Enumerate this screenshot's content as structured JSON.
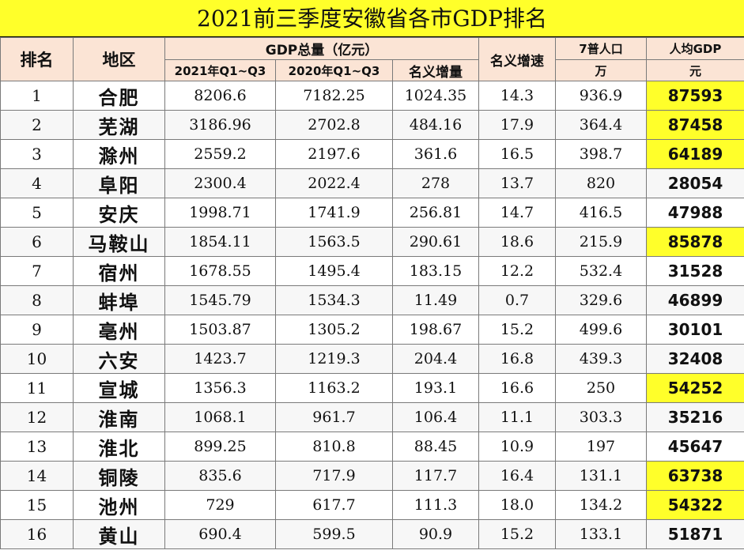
{
  "title": "2021前三季度安徽省各市GDP排名",
  "headers": {
    "rank": "排名",
    "region": "地区",
    "gdp_total": "GDP总量（亿元）",
    "gdp_2021": "2021年Q1~Q3",
    "gdp_2020": "2020年Q1~Q3",
    "nominal_increase": "名义增量",
    "nominal_growth": "名义增速",
    "census_pop": "7普人口",
    "census_pop_unit": "万",
    "per_capita": "人均GDP",
    "per_capita_unit": "元"
  },
  "colors": {
    "title_bg": "#ffff2a",
    "header_bg": "#fbe4d5",
    "highlight": "#ffff2a"
  },
  "rows": [
    {
      "rank": "1",
      "city": "合肥",
      "gdp2021": "8206.6",
      "gdp2020": "7182.25",
      "incr": "1024.35",
      "growth": "14.3",
      "pop": "936.9",
      "percap": "87593",
      "highlight": true
    },
    {
      "rank": "2",
      "city": "芜湖",
      "gdp2021": "3186.96",
      "gdp2020": "2702.8",
      "incr": "484.16",
      "growth": "17.9",
      "pop": "364.4",
      "percap": "87458",
      "highlight": true
    },
    {
      "rank": "3",
      "city": "滁州",
      "gdp2021": "2559.2",
      "gdp2020": "2197.6",
      "incr": "361.6",
      "growth": "16.5",
      "pop": "398.7",
      "percap": "64189",
      "highlight": true
    },
    {
      "rank": "4",
      "city": "阜阳",
      "gdp2021": "2300.4",
      "gdp2020": "2022.4",
      "incr": "278",
      "growth": "13.7",
      "pop": "820",
      "percap": "28054",
      "highlight": false
    },
    {
      "rank": "5",
      "city": "安庆",
      "gdp2021": "1998.71",
      "gdp2020": "1741.9",
      "incr": "256.81",
      "growth": "14.7",
      "pop": "416.5",
      "percap": "47988",
      "highlight": false
    },
    {
      "rank": "6",
      "city": "马鞍山",
      "gdp2021": "1854.11",
      "gdp2020": "1563.5",
      "incr": "290.61",
      "growth": "18.6",
      "pop": "215.9",
      "percap": "85878",
      "highlight": true
    },
    {
      "rank": "7",
      "city": "宿州",
      "gdp2021": "1678.55",
      "gdp2020": "1495.4",
      "incr": "183.15",
      "growth": "12.2",
      "pop": "532.4",
      "percap": "31528",
      "highlight": false
    },
    {
      "rank": "8",
      "city": "蚌埠",
      "gdp2021": "1545.79",
      "gdp2020": "1534.3",
      "incr": "11.49",
      "growth": "0.7",
      "pop": "329.6",
      "percap": "46899",
      "highlight": false
    },
    {
      "rank": "9",
      "city": "亳州",
      "gdp2021": "1503.87",
      "gdp2020": "1305.2",
      "incr": "198.67",
      "growth": "15.2",
      "pop": "499.6",
      "percap": "30101",
      "highlight": false
    },
    {
      "rank": "10",
      "city": "六安",
      "gdp2021": "1423.7",
      "gdp2020": "1219.3",
      "incr": "204.4",
      "growth": "16.8",
      "pop": "439.3",
      "percap": "32408",
      "highlight": false
    },
    {
      "rank": "11",
      "city": "宣城",
      "gdp2021": "1356.3",
      "gdp2020": "1163.2",
      "incr": "193.1",
      "growth": "16.6",
      "pop": "250",
      "percap": "54252",
      "highlight": true
    },
    {
      "rank": "12",
      "city": "淮南",
      "gdp2021": "1068.1",
      "gdp2020": "961.7",
      "incr": "106.4",
      "growth": "11.1",
      "pop": "303.3",
      "percap": "35216",
      "highlight": false
    },
    {
      "rank": "13",
      "city": "淮北",
      "gdp2021": "899.25",
      "gdp2020": "810.8",
      "incr": "88.45",
      "growth": "10.9",
      "pop": "197",
      "percap": "45647",
      "highlight": false
    },
    {
      "rank": "14",
      "city": "铜陵",
      "gdp2021": "835.6",
      "gdp2020": "717.9",
      "incr": "117.7",
      "growth": "16.4",
      "pop": "131.1",
      "percap": "63738",
      "highlight": true
    },
    {
      "rank": "15",
      "city": "池州",
      "gdp2021": "729",
      "gdp2020": "617.7",
      "incr": "111.3",
      "growth": "18.0",
      "pop": "134.2",
      "percap": "54322",
      "highlight": true
    },
    {
      "rank": "16",
      "city": "黄山",
      "gdp2021": "690.4",
      "gdp2020": "599.5",
      "incr": "90.9",
      "growth": "15.2",
      "pop": "133.1",
      "percap": "51871",
      "highlight": false
    }
  ]
}
